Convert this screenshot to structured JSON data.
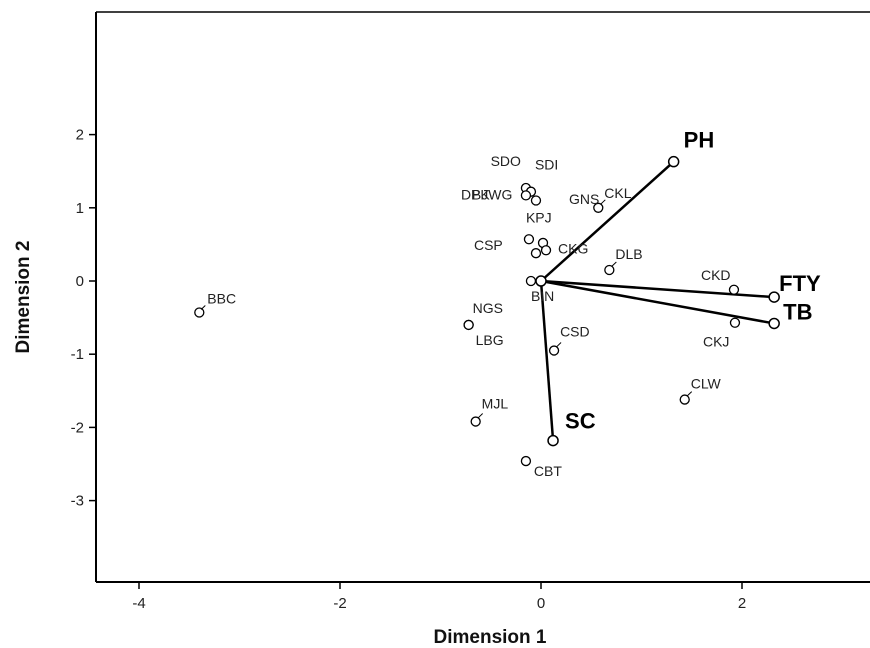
{
  "chart_data": {
    "type": "scatter",
    "subtype": "biplot",
    "title": "",
    "xlabel": "Dimension 1",
    "ylabel": "Dimension 2",
    "xlim": [
      -4.4,
      3.2
    ],
    "ylim": [
      -4.1,
      3.7
    ],
    "xticks": [
      -4,
      -2,
      0,
      2
    ],
    "yticks": [
      -3,
      -2,
      -1,
      0,
      1,
      2
    ],
    "grid": false,
    "legend": "none",
    "colors": {
      "axis": "#000000",
      "marker": "#000000",
      "text": "#222222",
      "background": "#ffffff"
    },
    "points": [
      {
        "label": "BBC",
        "x": -3.4,
        "y": -0.43
      },
      {
        "label": "SDO",
        "x": -0.15,
        "y": 1.27
      },
      {
        "label": "SDI",
        "x": -0.1,
        "y": 1.22
      },
      {
        "label": "BJWG",
        "x": -0.15,
        "y": 1.17
      },
      {
        "label": "CKL",
        "x": 0.57,
        "y": 1.0
      },
      {
        "label": "KPJ",
        "x": -0.05,
        "y": 1.1
      },
      {
        "label": "DPK",
        "x": -0.12,
        "y": 0.57
      },
      {
        "label": "GNS",
        "x": 0.02,
        "y": 0.52
      },
      {
        "label": "CSP",
        "x": -0.05,
        "y": 0.38
      },
      {
        "label": "CKG",
        "x": 0.05,
        "y": 0.42
      },
      {
        "label": "DLB",
        "x": 0.68,
        "y": 0.15
      },
      {
        "label": "BIN",
        "x": -0.1,
        "y": 0.0
      },
      {
        "label": "NGS",
        "x": -0.72,
        "y": -0.6
      },
      {
        "label": "LBG",
        "x": -0.72,
        "y": -0.6
      },
      {
        "label": "CSD",
        "x": 0.13,
        "y": -0.95
      },
      {
        "label": "CKD",
        "x": 1.92,
        "y": -0.12
      },
      {
        "label": "CKJ",
        "x": 1.93,
        "y": -0.57
      },
      {
        "label": "CLW",
        "x": 1.43,
        "y": -1.62
      },
      {
        "label": "MJL",
        "x": -0.65,
        "y": -1.92
      },
      {
        "label": "CBT",
        "x": -0.15,
        "y": -2.46
      }
    ],
    "vectors": [
      {
        "label": "PH",
        "x": 1.32,
        "y": 1.63
      },
      {
        "label": "FTY",
        "x": 2.32,
        "y": -0.22
      },
      {
        "label": "TB",
        "x": 2.32,
        "y": -0.58
      },
      {
        "label": "SC",
        "x": 0.12,
        "y": -2.18
      }
    ]
  }
}
